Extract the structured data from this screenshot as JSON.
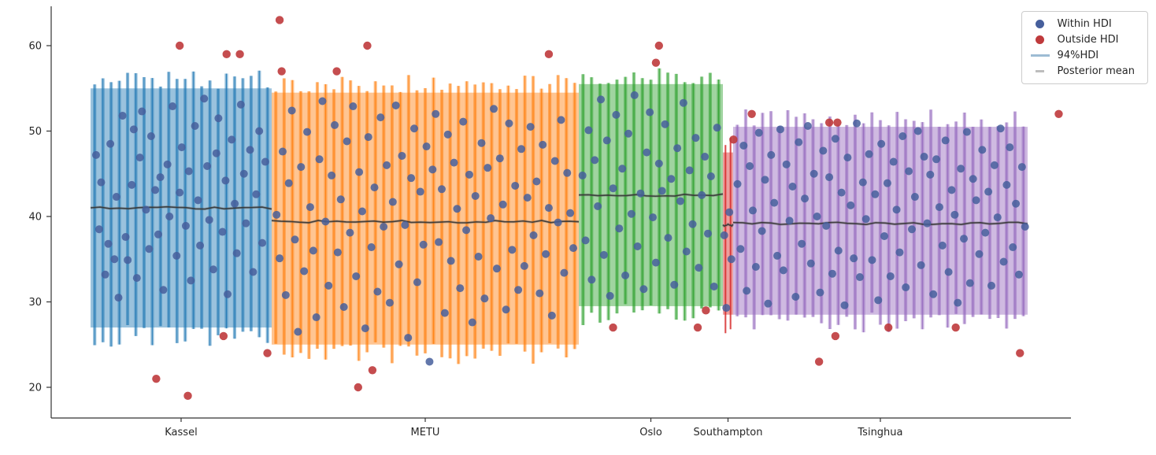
{
  "chart_data": {
    "type": "scatter",
    "title": "",
    "xlabel": "",
    "ylabel": "",
    "ylim": [
      17,
      64.5
    ],
    "yticks": [
      20,
      30,
      40,
      50,
      60
    ],
    "grid": false,
    "legend_position": "upper right",
    "colors": {
      "within": "#465f9c",
      "outside": "#bf3a3c",
      "mean_line": "#2f2f2f",
      "axis": "#333333",
      "tick_text": "#262626"
    },
    "groups": [
      {
        "label": "Kassel",
        "color": "#1f77b4",
        "x_start": 0.0386,
        "x_end": 0.2162,
        "hdi_lo": 26.0,
        "hdi_hi": 56.0,
        "mean": 41.0,
        "n_obs": 22
      },
      {
        "label": "METU",
        "color": "#ff7f0e",
        "x_start": 0.2162,
        "x_end": 0.5174,
        "hdi_lo": 24.0,
        "hdi_hi": 55.5,
        "mean": 39.4,
        "n_obs": 37
      },
      {
        "label": "Oslo",
        "color": "#2ca02c",
        "x_start": 0.5174,
        "x_end": 0.6587,
        "hdi_lo": 28.5,
        "hdi_hi": 56.5,
        "mean": 42.5,
        "n_obs": 17
      },
      {
        "label": "Southampton",
        "color": "#d62728",
        "x_start": 0.6587,
        "x_end": 0.6687,
        "hdi_lo": 27.5,
        "hdi_hi": 48.5,
        "mean": 39.0,
        "n_obs": 2
      },
      {
        "label": "Tsinghua",
        "color": "#9467bd",
        "x_start": 0.6687,
        "x_end": 0.9575,
        "hdi_lo": 27.5,
        "hdi_hi": 51.5,
        "mean": 39.2,
        "n_obs": 35
      }
    ],
    "legend": [
      {
        "label": "Within HDI",
        "marker": "dot",
        "color": "#465f9c"
      },
      {
        "label": "Outside HDI",
        "marker": "dot",
        "color": "#bf3a3c"
      },
      {
        "label": "94%HDI",
        "marker": "line",
        "color": "#9dbcd4"
      },
      {
        "label": "Posterior mean",
        "marker": "dash",
        "color": "#bdbdbd"
      }
    ],
    "points": {
      "within": [
        [
          0.044,
          47.2
        ],
        [
          0.047,
          38.5
        ],
        [
          0.049,
          44.0
        ],
        [
          0.053,
          33.2
        ],
        [
          0.056,
          36.8
        ],
        [
          0.058,
          48.5
        ],
        [
          0.062,
          35.0
        ],
        [
          0.064,
          42.3
        ],
        [
          0.066,
          30.5
        ],
        [
          0.07,
          51.8
        ],
        [
          0.073,
          37.6
        ],
        [
          0.075,
          34.9
        ],
        [
          0.079,
          43.7
        ],
        [
          0.081,
          50.2
        ],
        [
          0.084,
          32.8
        ],
        [
          0.087,
          46.9
        ],
        [
          0.089,
          52.3
        ],
        [
          0.093,
          40.8
        ],
        [
          0.096,
          36.2
        ],
        [
          0.098,
          49.4
        ],
        [
          0.102,
          43.1
        ],
        [
          0.105,
          37.9
        ],
        [
          0.107,
          44.6
        ],
        [
          0.11,
          31.4
        ],
        [
          0.114,
          46.1
        ],
        [
          0.116,
          40.0
        ],
        [
          0.119,
          52.9
        ],
        [
          0.123,
          35.4
        ],
        [
          0.126,
          42.8
        ],
        [
          0.128,
          48.1
        ],
        [
          0.132,
          38.9
        ],
        [
          0.135,
          45.3
        ],
        [
          0.137,
          32.5
        ],
        [
          0.141,
          50.6
        ],
        [
          0.144,
          41.9
        ],
        [
          0.146,
          36.6
        ],
        [
          0.15,
          53.8
        ],
        [
          0.153,
          45.9
        ],
        [
          0.155,
          39.6
        ],
        [
          0.159,
          33.8
        ],
        [
          0.162,
          47.4
        ],
        [
          0.164,
          51.5
        ],
        [
          0.168,
          38.2
        ],
        [
          0.171,
          44.2
        ],
        [
          0.173,
          30.9
        ],
        [
          0.177,
          49.0
        ],
        [
          0.18,
          41.5
        ],
        [
          0.182,
          35.7
        ],
        [
          0.186,
          53.1
        ],
        [
          0.189,
          45.0
        ],
        [
          0.191,
          39.2
        ],
        [
          0.195,
          47.8
        ],
        [
          0.198,
          33.5
        ],
        [
          0.201,
          42.6
        ],
        [
          0.204,
          50.0
        ],
        [
          0.207,
          36.9
        ],
        [
          0.21,
          46.4
        ],
        [
          0.221,
          40.2
        ],
        [
          0.224,
          35.1
        ],
        [
          0.227,
          47.6
        ],
        [
          0.23,
          30.8
        ],
        [
          0.233,
          43.9
        ],
        [
          0.236,
          52.4
        ],
        [
          0.239,
          37.3
        ],
        [
          0.242,
          26.5
        ],
        [
          0.245,
          45.8
        ],
        [
          0.248,
          33.6
        ],
        [
          0.251,
          49.9
        ],
        [
          0.254,
          41.1
        ],
        [
          0.257,
          36.0
        ],
        [
          0.26,
          28.2
        ],
        [
          0.263,
          46.7
        ],
        [
          0.266,
          53.5
        ],
        [
          0.269,
          39.4
        ],
        [
          0.272,
          31.9
        ],
        [
          0.275,
          44.8
        ],
        [
          0.278,
          50.7
        ],
        [
          0.281,
          35.8
        ],
        [
          0.284,
          42.0
        ],
        [
          0.287,
          29.4
        ],
        [
          0.29,
          48.8
        ],
        [
          0.293,
          38.1
        ],
        [
          0.296,
          52.9
        ],
        [
          0.299,
          33.0
        ],
        [
          0.302,
          45.2
        ],
        [
          0.305,
          40.6
        ],
        [
          0.308,
          26.9
        ],
        [
          0.311,
          49.3
        ],
        [
          0.314,
          36.4
        ],
        [
          0.317,
          43.4
        ],
        [
          0.32,
          31.2
        ],
        [
          0.323,
          51.6
        ],
        [
          0.326,
          38.8
        ],
        [
          0.329,
          46.0
        ],
        [
          0.332,
          29.9
        ],
        [
          0.335,
          41.7
        ],
        [
          0.338,
          53.0
        ],
        [
          0.341,
          34.4
        ],
        [
          0.344,
          47.1
        ],
        [
          0.347,
          39.0
        ],
        [
          0.35,
          25.8
        ],
        [
          0.353,
          44.5
        ],
        [
          0.356,
          50.3
        ],
        [
          0.359,
          32.3
        ],
        [
          0.362,
          42.9
        ],
        [
          0.365,
          36.7
        ],
        [
          0.368,
          48.2
        ],
        [
          0.371,
          23.0
        ],
        [
          0.374,
          45.5
        ],
        [
          0.377,
          52.0
        ],
        [
          0.38,
          37.0
        ],
        [
          0.383,
          43.2
        ],
        [
          0.386,
          28.7
        ],
        [
          0.389,
          49.6
        ],
        [
          0.392,
          34.8
        ],
        [
          0.395,
          46.3
        ],
        [
          0.398,
          40.9
        ],
        [
          0.401,
          31.6
        ],
        [
          0.404,
          51.1
        ],
        [
          0.407,
          38.4
        ],
        [
          0.41,
          44.9
        ],
        [
          0.413,
          27.6
        ],
        [
          0.416,
          42.4
        ],
        [
          0.419,
          35.3
        ],
        [
          0.422,
          48.6
        ],
        [
          0.425,
          30.4
        ],
        [
          0.428,
          45.7
        ],
        [
          0.431,
          39.8
        ],
        [
          0.434,
          52.6
        ],
        [
          0.437,
          33.9
        ],
        [
          0.44,
          46.8
        ],
        [
          0.443,
          41.4
        ],
        [
          0.446,
          29.1
        ],
        [
          0.449,
          50.9
        ],
        [
          0.452,
          36.1
        ],
        [
          0.455,
          43.6
        ],
        [
          0.458,
          31.4
        ],
        [
          0.461,
          47.9
        ],
        [
          0.464,
          34.2
        ],
        [
          0.467,
          42.2
        ],
        [
          0.47,
          50.5
        ],
        [
          0.473,
          37.8
        ],
        [
          0.476,
          44.1
        ],
        [
          0.479,
          31.0
        ],
        [
          0.482,
          48.4
        ],
        [
          0.485,
          35.6
        ],
        [
          0.488,
          41.0
        ],
        [
          0.491,
          28.4
        ],
        [
          0.494,
          46.5
        ],
        [
          0.497,
          39.3
        ],
        [
          0.5,
          51.3
        ],
        [
          0.503,
          33.4
        ],
        [
          0.506,
          45.1
        ],
        [
          0.509,
          40.4
        ],
        [
          0.512,
          36.3
        ],
        [
          0.521,
          44.8
        ],
        [
          0.524,
          37.2
        ],
        [
          0.527,
          50.1
        ],
        [
          0.53,
          32.6
        ],
        [
          0.533,
          46.6
        ],
        [
          0.536,
          41.2
        ],
        [
          0.539,
          53.7
        ],
        [
          0.542,
          35.5
        ],
        [
          0.545,
          48.9
        ],
        [
          0.548,
          30.7
        ],
        [
          0.551,
          43.3
        ],
        [
          0.554,
          51.9
        ],
        [
          0.557,
          38.6
        ],
        [
          0.56,
          45.6
        ],
        [
          0.563,
          33.1
        ],
        [
          0.566,
          49.7
        ],
        [
          0.569,
          40.3
        ],
        [
          0.572,
          54.2
        ],
        [
          0.575,
          36.5
        ],
        [
          0.578,
          42.7
        ],
        [
          0.581,
          31.5
        ],
        [
          0.584,
          47.5
        ],
        [
          0.587,
          52.2
        ],
        [
          0.59,
          39.9
        ],
        [
          0.593,
          34.6
        ],
        [
          0.596,
          46.2
        ],
        [
          0.599,
          43.0
        ],
        [
          0.602,
          50.8
        ],
        [
          0.605,
          37.5
        ],
        [
          0.608,
          44.4
        ],
        [
          0.611,
          32.0
        ],
        [
          0.614,
          48.0
        ],
        [
          0.617,
          41.8
        ],
        [
          0.62,
          53.3
        ],
        [
          0.623,
          35.9
        ],
        [
          0.626,
          45.4
        ],
        [
          0.629,
          39.1
        ],
        [
          0.632,
          49.2
        ],
        [
          0.635,
          34.0
        ],
        [
          0.638,
          42.5
        ],
        [
          0.641,
          47.0
        ],
        [
          0.644,
          38.0
        ],
        [
          0.647,
          44.7
        ],
        [
          0.65,
          31.8
        ],
        [
          0.653,
          50.4
        ],
        [
          0.66,
          37.8
        ],
        [
          0.662,
          29.3
        ],
        [
          0.665,
          40.5
        ],
        [
          0.667,
          35.0
        ],
        [
          0.673,
          43.8
        ],
        [
          0.676,
          36.2
        ],
        [
          0.679,
          48.3
        ],
        [
          0.682,
          31.3
        ],
        [
          0.685,
          45.9
        ],
        [
          0.688,
          40.7
        ],
        [
          0.691,
          34.1
        ],
        [
          0.694,
          49.8
        ],
        [
          0.697,
          38.3
        ],
        [
          0.7,
          44.3
        ],
        [
          0.703,
          29.8
        ],
        [
          0.706,
          47.2
        ],
        [
          0.709,
          41.6
        ],
        [
          0.712,
          35.4
        ],
        [
          0.715,
          50.2
        ],
        [
          0.718,
          33.7
        ],
        [
          0.721,
          46.1
        ],
        [
          0.724,
          39.5
        ],
        [
          0.727,
          43.5
        ],
        [
          0.73,
          30.6
        ],
        [
          0.733,
          48.7
        ],
        [
          0.736,
          36.8
        ],
        [
          0.739,
          42.1
        ],
        [
          0.742,
          50.6
        ],
        [
          0.745,
          34.5
        ],
        [
          0.748,
          45.0
        ],
        [
          0.751,
          40.0
        ],
        [
          0.754,
          31.1
        ],
        [
          0.757,
          47.7
        ],
        [
          0.76,
          38.9
        ],
        [
          0.763,
          44.6
        ],
        [
          0.766,
          33.3
        ],
        [
          0.769,
          49.1
        ],
        [
          0.772,
          36.0
        ],
        [
          0.775,
          42.8
        ],
        [
          0.778,
          29.6
        ],
        [
          0.781,
          46.9
        ],
        [
          0.784,
          41.3
        ],
        [
          0.787,
          35.1
        ],
        [
          0.79,
          50.9
        ],
        [
          0.793,
          32.9
        ],
        [
          0.796,
          44.0
        ],
        [
          0.799,
          39.7
        ],
        [
          0.802,
          47.3
        ],
        [
          0.805,
          34.9
        ],
        [
          0.808,
          42.6
        ],
        [
          0.811,
          30.2
        ],
        [
          0.814,
          48.5
        ],
        [
          0.817,
          37.7
        ],
        [
          0.82,
          43.9
        ],
        [
          0.823,
          33.0
        ],
        [
          0.826,
          46.4
        ],
        [
          0.829,
          40.8
        ],
        [
          0.832,
          35.8
        ],
        [
          0.835,
          49.4
        ],
        [
          0.838,
          31.7
        ],
        [
          0.841,
          45.3
        ],
        [
          0.844,
          38.5
        ],
        [
          0.847,
          42.3
        ],
        [
          0.85,
          50.0
        ],
        [
          0.853,
          34.3
        ],
        [
          0.856,
          47.0
        ],
        [
          0.859,
          39.2
        ],
        [
          0.862,
          44.9
        ],
        [
          0.865,
          30.9
        ],
        [
          0.868,
          46.7
        ],
        [
          0.871,
          41.1
        ],
        [
          0.874,
          36.6
        ],
        [
          0.877,
          48.9
        ],
        [
          0.88,
          33.5
        ],
        [
          0.883,
          43.1
        ],
        [
          0.886,
          40.2
        ],
        [
          0.889,
          29.9
        ],
        [
          0.892,
          45.6
        ],
        [
          0.895,
          37.4
        ],
        [
          0.898,
          49.9
        ],
        [
          0.901,
          32.2
        ],
        [
          0.904,
          44.4
        ],
        [
          0.907,
          41.9
        ],
        [
          0.91,
          35.6
        ],
        [
          0.913,
          47.8
        ],
        [
          0.916,
          38.1
        ],
        [
          0.919,
          42.9
        ],
        [
          0.922,
          31.9
        ],
        [
          0.925,
          46.0
        ],
        [
          0.928,
          39.9
        ],
        [
          0.931,
          50.3
        ],
        [
          0.934,
          34.7
        ],
        [
          0.937,
          43.7
        ],
        [
          0.94,
          48.1
        ],
        [
          0.943,
          36.4
        ],
        [
          0.946,
          41.5
        ],
        [
          0.949,
          33.2
        ],
        [
          0.952,
          45.8
        ],
        [
          0.955,
          38.8
        ]
      ],
      "outside": [
        [
          0.103,
          21
        ],
        [
          0.126,
          60
        ],
        [
          0.134,
          19
        ],
        [
          0.169,
          26
        ],
        [
          0.172,
          59
        ],
        [
          0.185,
          59
        ],
        [
          0.212,
          24
        ],
        [
          0.224,
          63
        ],
        [
          0.226,
          57
        ],
        [
          0.28,
          57
        ],
        [
          0.301,
          20
        ],
        [
          0.31,
          60
        ],
        [
          0.315,
          22
        ],
        [
          0.488,
          59
        ],
        [
          0.551,
          27
        ],
        [
          0.593,
          58
        ],
        [
          0.596,
          60
        ],
        [
          0.634,
          27
        ],
        [
          0.642,
          29
        ],
        [
          0.669,
          49
        ],
        [
          0.687,
          52
        ],
        [
          0.753,
          23
        ],
        [
          0.763,
          51
        ],
        [
          0.769,
          26
        ],
        [
          0.771,
          51
        ],
        [
          0.821,
          27
        ],
        [
          0.887,
          27
        ],
        [
          0.95,
          24
        ],
        [
          0.988,
          52
        ]
      ]
    }
  }
}
